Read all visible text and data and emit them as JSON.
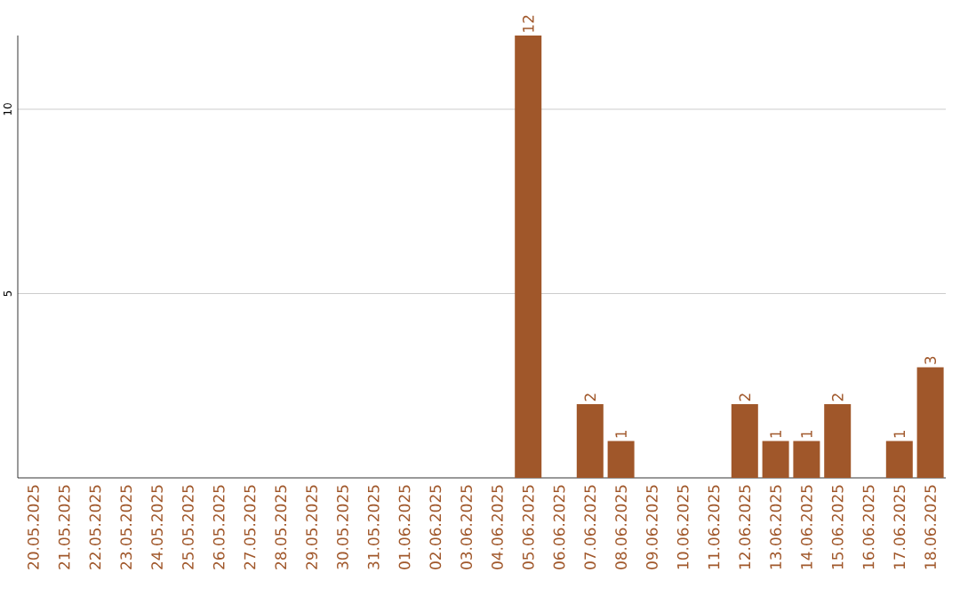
{
  "chart_data": {
    "type": "bar",
    "categories": [
      "20.05.2025",
      "21.05.2025",
      "22.05.2025",
      "23.05.2025",
      "24.05.2025",
      "25.05.2025",
      "26.05.2025",
      "27.05.2025",
      "28.05.2025",
      "29.05.2025",
      "30.05.2025",
      "31.05.2025",
      "01.06.2025",
      "02.06.2025",
      "03.06.2025",
      "04.06.2025",
      "05.06.2025",
      "06.06.2025",
      "07.06.2025",
      "08.06.2025",
      "09.06.2025",
      "10.06.2025",
      "11.06.2025",
      "12.06.2025",
      "13.06.2025",
      "14.06.2025",
      "15.06.2025",
      "16.06.2025",
      "17.06.2025",
      "18.06.2025"
    ],
    "values": [
      0,
      0,
      0,
      0,
      0,
      0,
      0,
      0,
      0,
      0,
      0,
      0,
      0,
      0,
      0,
      0,
      12,
      0,
      2,
      1,
      0,
      0,
      0,
      2,
      1,
      1,
      2,
      0,
      1,
      3
    ],
    "value_labels": [
      null,
      null,
      null,
      null,
      null,
      null,
      null,
      null,
      null,
      null,
      null,
      null,
      null,
      null,
      null,
      null,
      "12",
      null,
      "2",
      "1",
      null,
      null,
      null,
      "2",
      "1",
      "1",
      "2",
      null,
      "1",
      "3"
    ],
    "color": "#a0572a",
    "ylim": [
      0,
      12
    ],
    "yticks": [
      5,
      10
    ],
    "grid": "y"
  }
}
